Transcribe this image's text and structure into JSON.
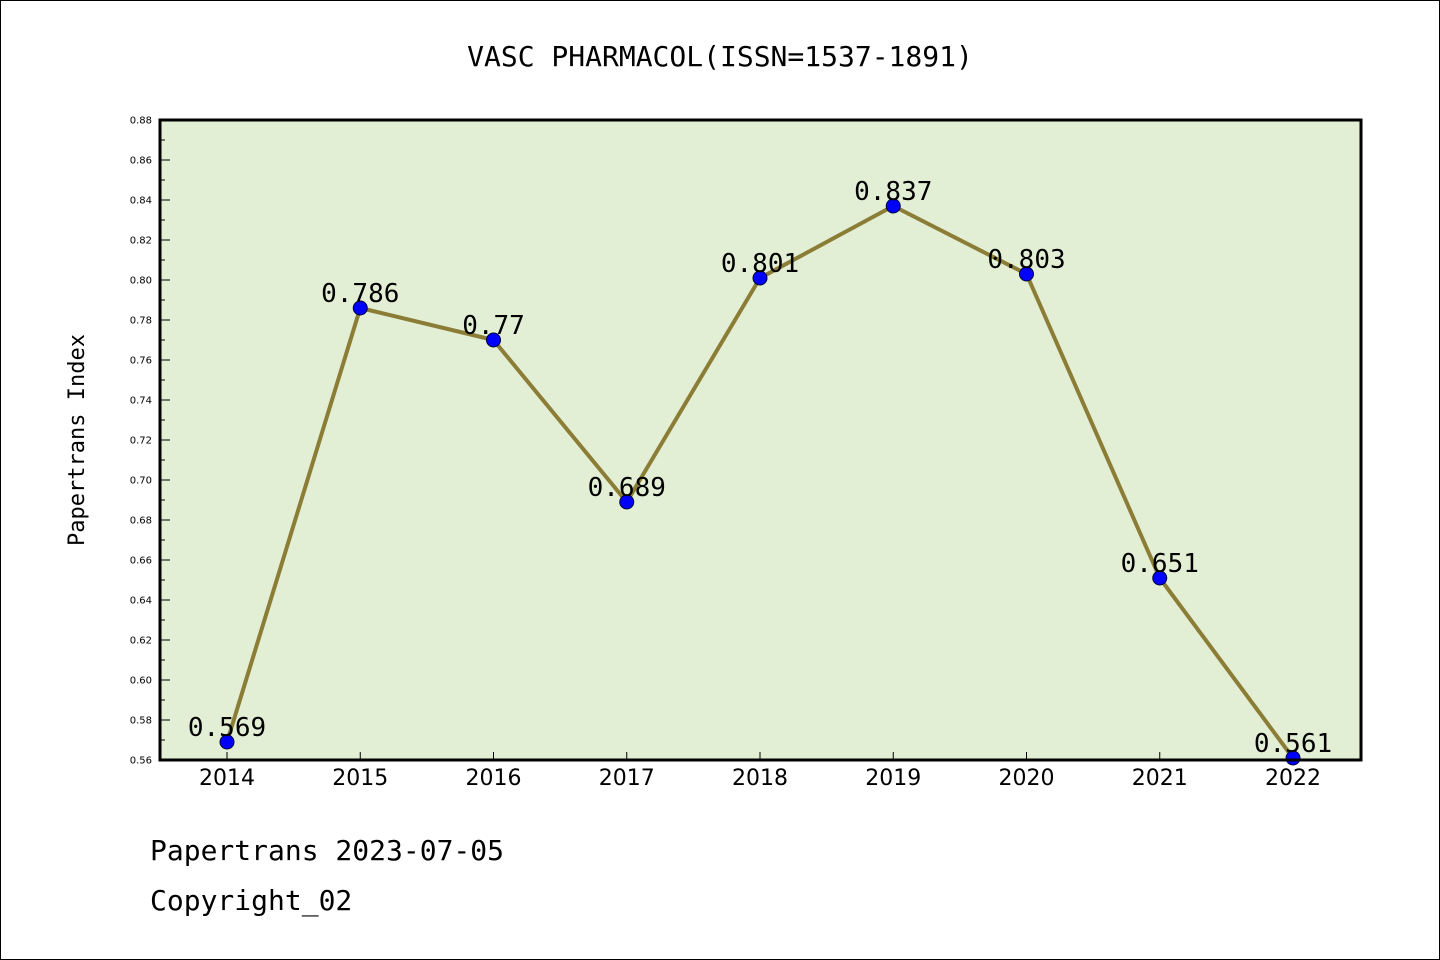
{
  "chart_data": {
    "type": "line",
    "title": "VASC PHARMACOL(ISSN=1537-1891)",
    "xlabel": "",
    "ylabel": "Papertrans Index",
    "categories": [
      "2014",
      "2015",
      "2016",
      "2017",
      "2018",
      "2019",
      "2020",
      "2021",
      "2022"
    ],
    "values": [
      0.569,
      0.786,
      0.77,
      0.689,
      0.801,
      0.837,
      0.803,
      0.651,
      0.561
    ],
    "data_labels": [
      "0.569",
      "0.786",
      "0.77",
      "0.689",
      "0.801",
      "0.837",
      "0.803",
      "0.651",
      "0.561"
    ],
    "ylim": [
      0.56,
      0.88
    ],
    "yticks": [
      "0.56",
      "0.58",
      "0.60",
      "0.62",
      "0.64",
      "0.66",
      "0.68",
      "0.70",
      "0.72",
      "0.74",
      "0.76",
      "0.78",
      "0.80",
      "0.82",
      "0.84",
      "0.86",
      "0.88"
    ],
    "grid": false,
    "legend": "none",
    "colors": {
      "plot_background": "#e2efd5",
      "line": "#8b7d35",
      "marker": "#0000ff"
    }
  },
  "footer": {
    "line1": "Papertrans 2023-07-05",
    "line2": "Copyright_02"
  }
}
